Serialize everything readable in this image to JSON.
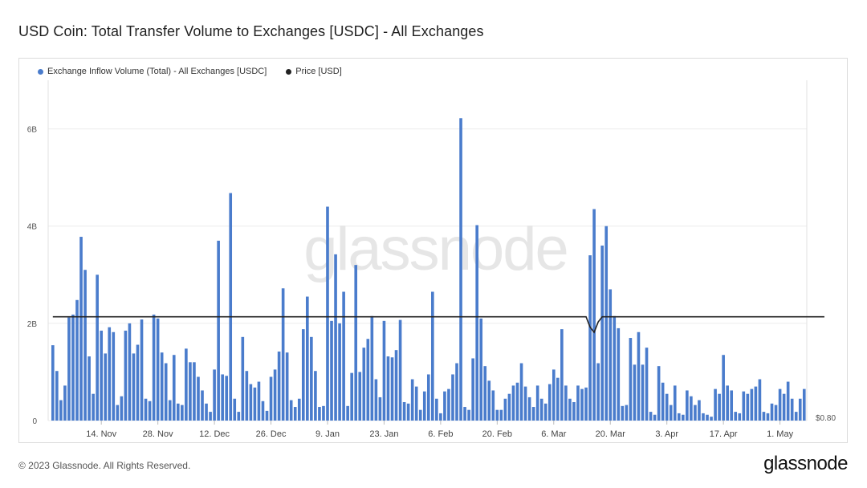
{
  "header": {
    "title": "USD Coin: Total Transfer Volume to Exchanges [USDC] - All Exchanges"
  },
  "legend": [
    {
      "label": "Exchange Inflow Volume (Total) - All Exchanges [USDC]",
      "color": "#4a7ccc"
    },
    {
      "label": "Price [USD]",
      "color": "#222222"
    }
  ],
  "watermark": "glassnode",
  "footer": {
    "copyright": "© 2023 Glassnode. All Rights Reserved.",
    "logo": "glassnode"
  },
  "chart_data": {
    "type": "bar",
    "title": "USD Coin: Total Transfer Volume to Exchanges [USDC] - All Exchanges",
    "y_ticks": [
      {
        "label": "0",
        "value": 0
      },
      {
        "label": "2B",
        "value": 2
      },
      {
        "label": "4B",
        "value": 4
      },
      {
        "label": "6B",
        "value": 6
      }
    ],
    "y_unit": "billions USDC",
    "ylim": [
      0,
      7
    ],
    "right_axis_label": "$0.80",
    "x_ticks": [
      {
        "label": "14. Nov",
        "index": 12
      },
      {
        "label": "28. Nov",
        "index": 26
      },
      {
        "label": "12. Dec",
        "index": 40
      },
      {
        "label": "26. Dec",
        "index": 54
      },
      {
        "label": "9. Jan",
        "index": 68
      },
      {
        "label": "23. Jan",
        "index": 82
      },
      {
        "label": "6. Feb",
        "index": 96
      },
      {
        "label": "20. Feb",
        "index": 110
      },
      {
        "label": "6. Mar",
        "index": 124
      },
      {
        "label": "20. Mar",
        "index": 138
      },
      {
        "label": "3. Apr",
        "index": 152
      },
      {
        "label": "17. Apr",
        "index": 166
      },
      {
        "label": "1. May",
        "index": 180
      }
    ],
    "grid": true,
    "legend_position": "top-left",
    "series": [
      {
        "name": "Exchange Inflow Volume (Total) - All Exchanges [USDC]",
        "color": "#4a7ccc",
        "values": [
          1.55,
          1.02,
          0.42,
          0.72,
          2.12,
          2.18,
          2.48,
          3.78,
          3.1,
          1.32,
          0.55,
          3.0,
          1.85,
          1.38,
          1.92,
          1.82,
          0.32,
          0.5,
          1.85,
          2.0,
          1.38,
          1.56,
          2.08,
          0.45,
          0.4,
          2.18,
          2.1,
          1.4,
          1.18,
          0.42,
          1.35,
          0.35,
          0.32,
          1.48,
          1.2,
          1.2,
          0.9,
          0.62,
          0.35,
          0.18,
          1.05,
          3.7,
          0.95,
          0.92,
          4.68,
          0.45,
          0.18,
          1.72,
          1.02,
          0.75,
          0.68,
          0.8,
          0.4,
          0.2,
          0.9,
          1.05,
          1.42,
          2.72,
          1.4,
          0.42,
          0.28,
          0.45,
          1.88,
          2.55,
          1.72,
          1.02,
          0.28,
          0.3,
          4.4,
          2.05,
          3.42,
          2.0,
          2.65,
          0.3,
          0.98,
          3.2,
          1.0,
          1.5,
          1.68,
          2.15,
          0.85,
          0.48,
          2.05,
          1.32,
          1.3,
          1.45,
          2.07,
          0.38,
          0.35,
          0.85,
          0.7,
          0.22,
          0.6,
          0.95,
          2.65,
          0.45,
          0.15,
          0.6,
          0.65,
          0.95,
          1.18,
          6.22,
          0.28,
          0.22,
          1.28,
          4.02,
          2.1,
          1.12,
          0.82,
          0.62,
          0.22,
          0.22,
          0.45,
          0.55,
          0.72,
          0.78,
          1.18,
          0.7,
          0.48,
          0.28,
          0.72,
          0.45,
          0.35,
          0.75,
          1.05,
          0.88,
          1.88,
          0.72,
          0.45,
          0.38,
          0.72,
          0.65,
          0.68,
          3.4,
          4.35,
          1.18,
          3.6,
          4.0,
          2.7,
          2.15,
          1.9,
          0.3,
          0.32,
          1.7,
          1.15,
          1.82,
          1.15,
          1.5,
          0.18,
          0.12,
          1.12,
          0.78,
          0.55,
          0.32,
          0.72,
          0.15,
          0.12,
          0.62,
          0.5,
          0.32,
          0.42,
          0.15,
          0.12,
          0.08,
          0.65,
          0.55,
          1.35,
          0.72,
          0.62,
          0.18,
          0.15,
          0.6,
          0.55,
          0.65,
          0.7,
          0.85,
          0.18,
          0.15,
          0.35,
          0.32,
          0.65,
          0.55,
          0.8,
          0.45,
          0.18,
          0.45,
          0.65
        ]
      },
      {
        "name": "Price [USD]",
        "color": "#222222",
        "type": "line",
        "values": [
          1.0,
          1.0,
          1.0,
          1.0,
          1.0,
          1.0,
          1.0,
          1.0,
          1.0,
          1.0,
          1.0,
          1.0,
          1.0,
          1.0,
          1.0,
          1.0,
          1.0,
          1.0,
          1.0,
          1.0,
          1.0,
          1.0,
          1.0,
          1.0,
          1.0,
          1.0,
          1.0,
          1.0,
          1.0,
          1.0,
          1.0,
          1.0,
          1.0,
          1.0,
          1.0,
          1.0,
          1.0,
          1.0,
          1.0,
          1.0,
          1.0,
          1.0,
          1.0,
          1.0,
          1.0,
          1.0,
          1.0,
          1.0,
          1.0,
          1.0,
          1.0,
          1.0,
          1.0,
          1.0,
          1.0,
          1.0,
          1.0,
          1.0,
          1.0,
          1.0,
          1.0,
          1.0,
          1.0,
          1.0,
          1.0,
          1.0,
          1.0,
          1.0,
          1.0,
          1.0,
          1.0,
          1.0,
          1.0,
          1.0,
          1.0,
          1.0,
          1.0,
          1.0,
          1.0,
          1.0,
          1.0,
          1.0,
          1.0,
          1.0,
          1.0,
          1.0,
          1.0,
          1.0,
          1.0,
          1.0,
          1.0,
          1.0,
          1.0,
          1.0,
          1.0,
          1.0,
          1.0,
          1.0,
          1.0,
          1.0,
          1.0,
          1.0,
          1.0,
          1.0,
          1.0,
          1.0,
          1.0,
          1.0,
          1.0,
          1.0,
          1.0,
          1.0,
          1.0,
          1.0,
          1.0,
          1.0,
          1.0,
          1.0,
          1.0,
          1.0,
          1.0,
          1.0,
          1.0,
          1.0,
          1.0,
          1.0,
          1.0,
          1.0,
          1.0,
          1.0,
          1.0,
          1.0,
          1.0,
          0.98,
          0.97,
          0.99,
          1.0,
          1.0,
          1.0,
          1.0,
          1.0,
          1.0,
          1.0,
          1.0,
          1.0,
          1.0,
          1.0,
          1.0,
          1.0,
          1.0,
          1.0,
          1.0,
          1.0,
          1.0,
          1.0,
          1.0,
          1.0,
          1.0,
          1.0,
          1.0,
          1.0,
          1.0,
          1.0,
          1.0,
          1.0,
          1.0,
          1.0,
          1.0,
          1.0,
          1.0,
          1.0,
          1.0,
          1.0,
          1.0,
          1.0,
          1.0,
          1.0,
          1.0,
          1.0,
          1.0,
          1.0,
          1.0,
          1.0,
          1.0,
          1.0,
          1.0,
          1.0,
          1.0,
          1.0,
          1.0,
          1.0,
          1.0
        ]
      }
    ]
  }
}
